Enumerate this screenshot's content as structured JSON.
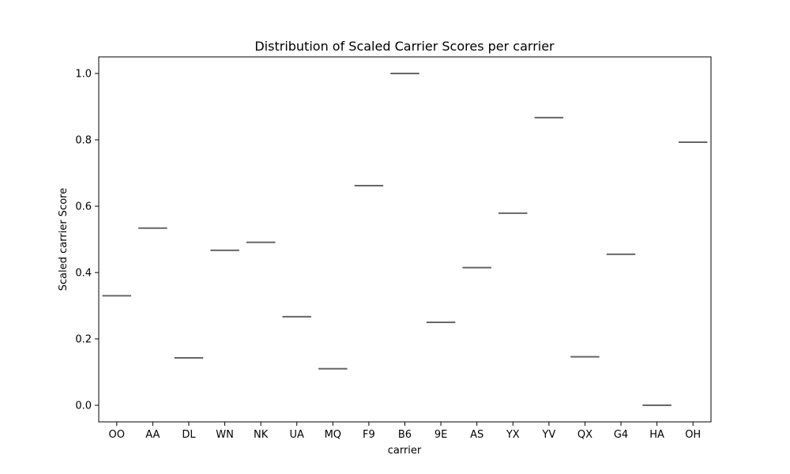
{
  "chart_data": {
    "type": "box",
    "title": "Distribution of Scaled Carrier Scores per carrier",
    "xlabel": "carrier",
    "ylabel": "Scaled carrier Score",
    "categories": [
      "OO",
      "AA",
      "DL",
      "WN",
      "NK",
      "UA",
      "MQ",
      "F9",
      "B6",
      "9E",
      "AS",
      "YX",
      "YV",
      "QX",
      "G4",
      "HA",
      "OH"
    ],
    "values": [
      0.33,
      0.534,
      0.143,
      0.467,
      0.491,
      0.267,
      0.11,
      0.662,
      1.0,
      0.25,
      0.415,
      0.579,
      0.867,
      0.146,
      0.455,
      0.0,
      0.793
    ],
    "ylim": [
      -0.05,
      1.05
    ],
    "yticks": [
      "0.0",
      "0.2",
      "0.4",
      "0.6",
      "0.8",
      "1.0"
    ],
    "grid": false,
    "legend": "none",
    "colors": {
      "median_line": "#666666",
      "axes": "#000000",
      "background": "#ffffff"
    }
  }
}
